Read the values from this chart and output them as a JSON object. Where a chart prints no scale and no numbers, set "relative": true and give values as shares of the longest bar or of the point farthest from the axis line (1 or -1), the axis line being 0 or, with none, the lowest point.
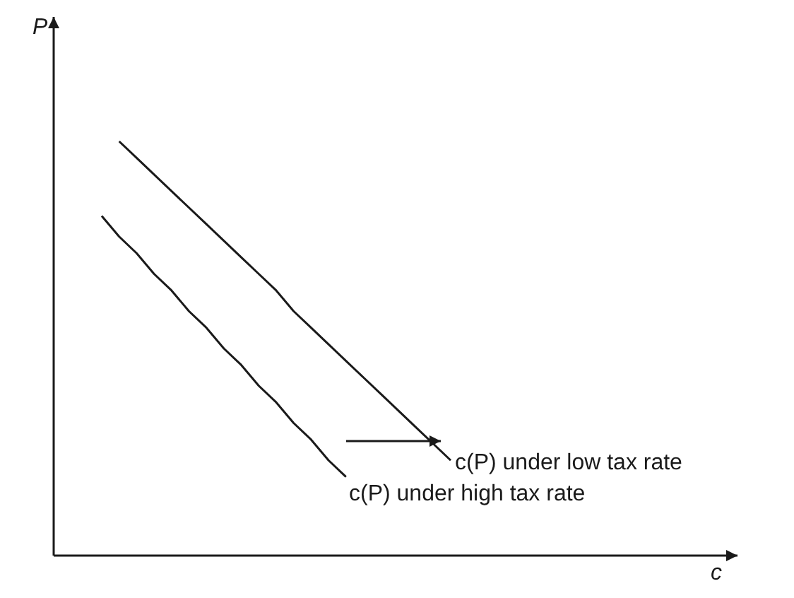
{
  "chart_data": {
    "type": "line",
    "relative": true,
    "annotations": [
      "c"
    ],
    "ylabel": "P",
    "categories": [
      null,
      null,
      null,
      null,
      null,
      null,
      null,
      null,
      null,
      null,
      null,
      null,
      null,
      null,
      null,
      null,
      null,
      null,
      null,
      null,
      null
    ],
    "series": [
      {
        "name": "c(P) under low tax rate",
        "color": "#1a1a1a",
        "values": [
          null,
          1.0,
          0.96,
          0.92,
          0.88,
          0.84,
          0.8,
          0.76,
          0.72,
          0.68,
          0.64,
          0.59,
          0.55,
          0.51,
          0.47,
          0.43,
          0.39,
          0.35,
          0.31,
          0.27,
          0.23
        ]
      },
      {
        "name": "c(P) under high tax rate",
        "color": "#1a1a1a",
        "values": [
          0.82,
          0.77,
          0.73,
          0.68,
          0.64,
          0.59,
          0.55,
          0.5,
          0.46,
          0.41,
          0.37,
          0.32,
          0.28,
          0.23,
          0.19,
          null,
          null,
          null,
          null,
          null,
          null
        ]
      }
    ]
  }
}
